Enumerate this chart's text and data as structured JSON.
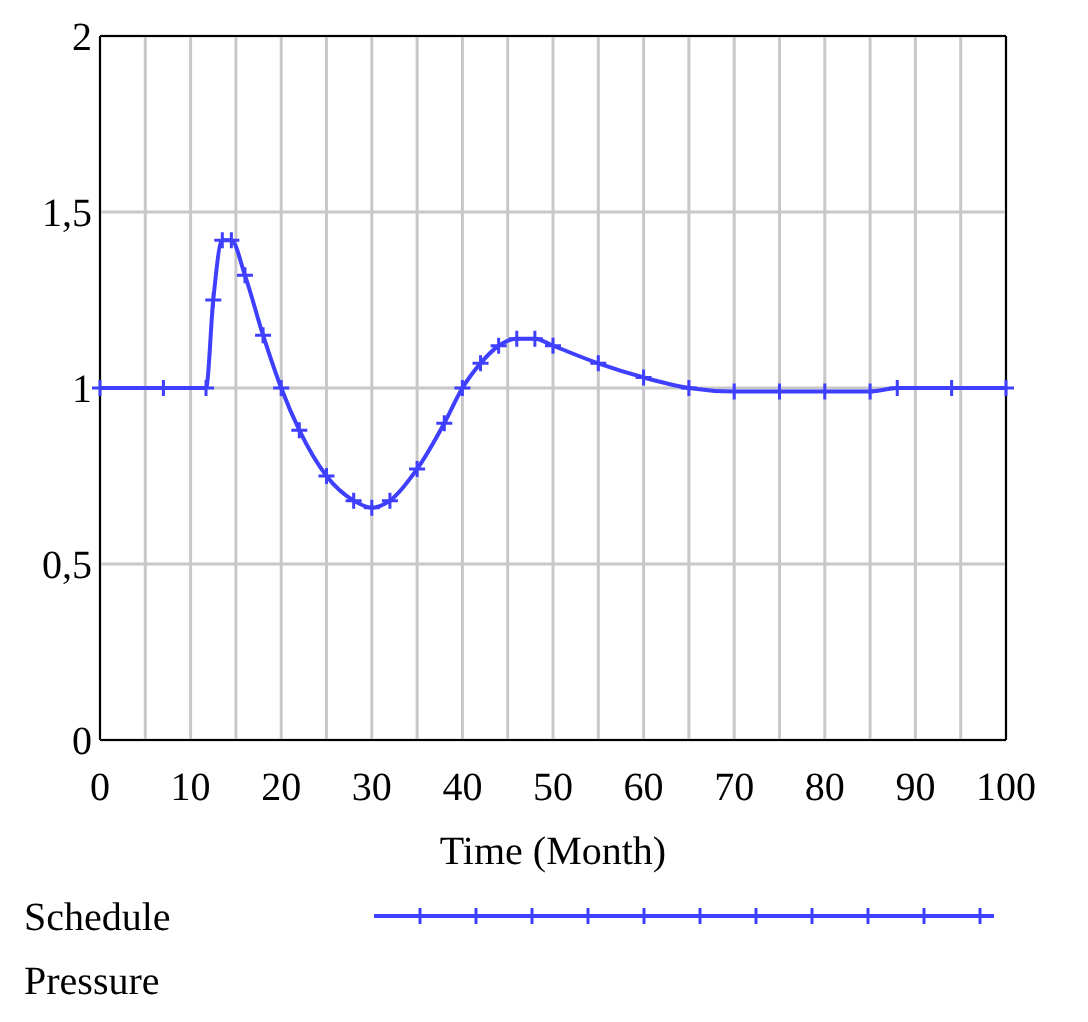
{
  "chart_data": {
    "type": "line",
    "xlabel": "Time (Month)",
    "xlim": [
      0,
      100
    ],
    "ylim": [
      0,
      2
    ],
    "xticks": [
      0,
      {
        "value": 5,
        "label": null
      },
      10,
      {
        "value": 15,
        "label": null
      },
      20,
      {
        "value": 25,
        "label": null
      },
      30,
      {
        "value": 35,
        "label": null
      },
      40,
      {
        "value": 45,
        "label": null
      },
      50,
      {
        "value": 55,
        "label": null
      },
      60,
      {
        "value": 65,
        "label": null
      },
      70,
      {
        "value": 75,
        "label": null
      },
      80,
      {
        "value": 85,
        "label": null
      },
      90,
      {
        "value": 95,
        "label": null
      },
      100
    ],
    "yticks": [
      0,
      {
        "value": 0.5,
        "label": "0,5"
      },
      1,
      {
        "value": 1.5,
        "label": "1,5"
      },
      2
    ],
    "grid": true,
    "legend": "bottom",
    "marker": "cross",
    "line_style": "solid",
    "x": [
      0,
      7,
      11.7,
      12.5,
      13.5,
      14.5,
      16,
      18,
      20,
      22,
      25,
      28,
      30,
      32,
      35,
      38,
      40,
      42,
      44,
      46,
      48,
      50,
      55,
      60,
      65,
      70,
      75,
      80,
      85,
      88,
      94,
      100
    ],
    "series": [
      {
        "name": "Schedule Pressure",
        "color": "#3f3fff",
        "values": [
          1,
          1,
          1,
          1.25,
          1.42,
          1.42,
          1.32,
          1.15,
          1.0,
          0.88,
          0.75,
          0.68,
          0.66,
          0.68,
          0.77,
          0.9,
          1.0,
          1.07,
          1.12,
          1.14,
          1.14,
          1.12,
          1.07,
          1.03,
          1.0,
          0.99,
          0.99,
          0.99,
          0.99,
          1.0,
          1.0,
          1.0
        ]
      }
    ]
  }
}
